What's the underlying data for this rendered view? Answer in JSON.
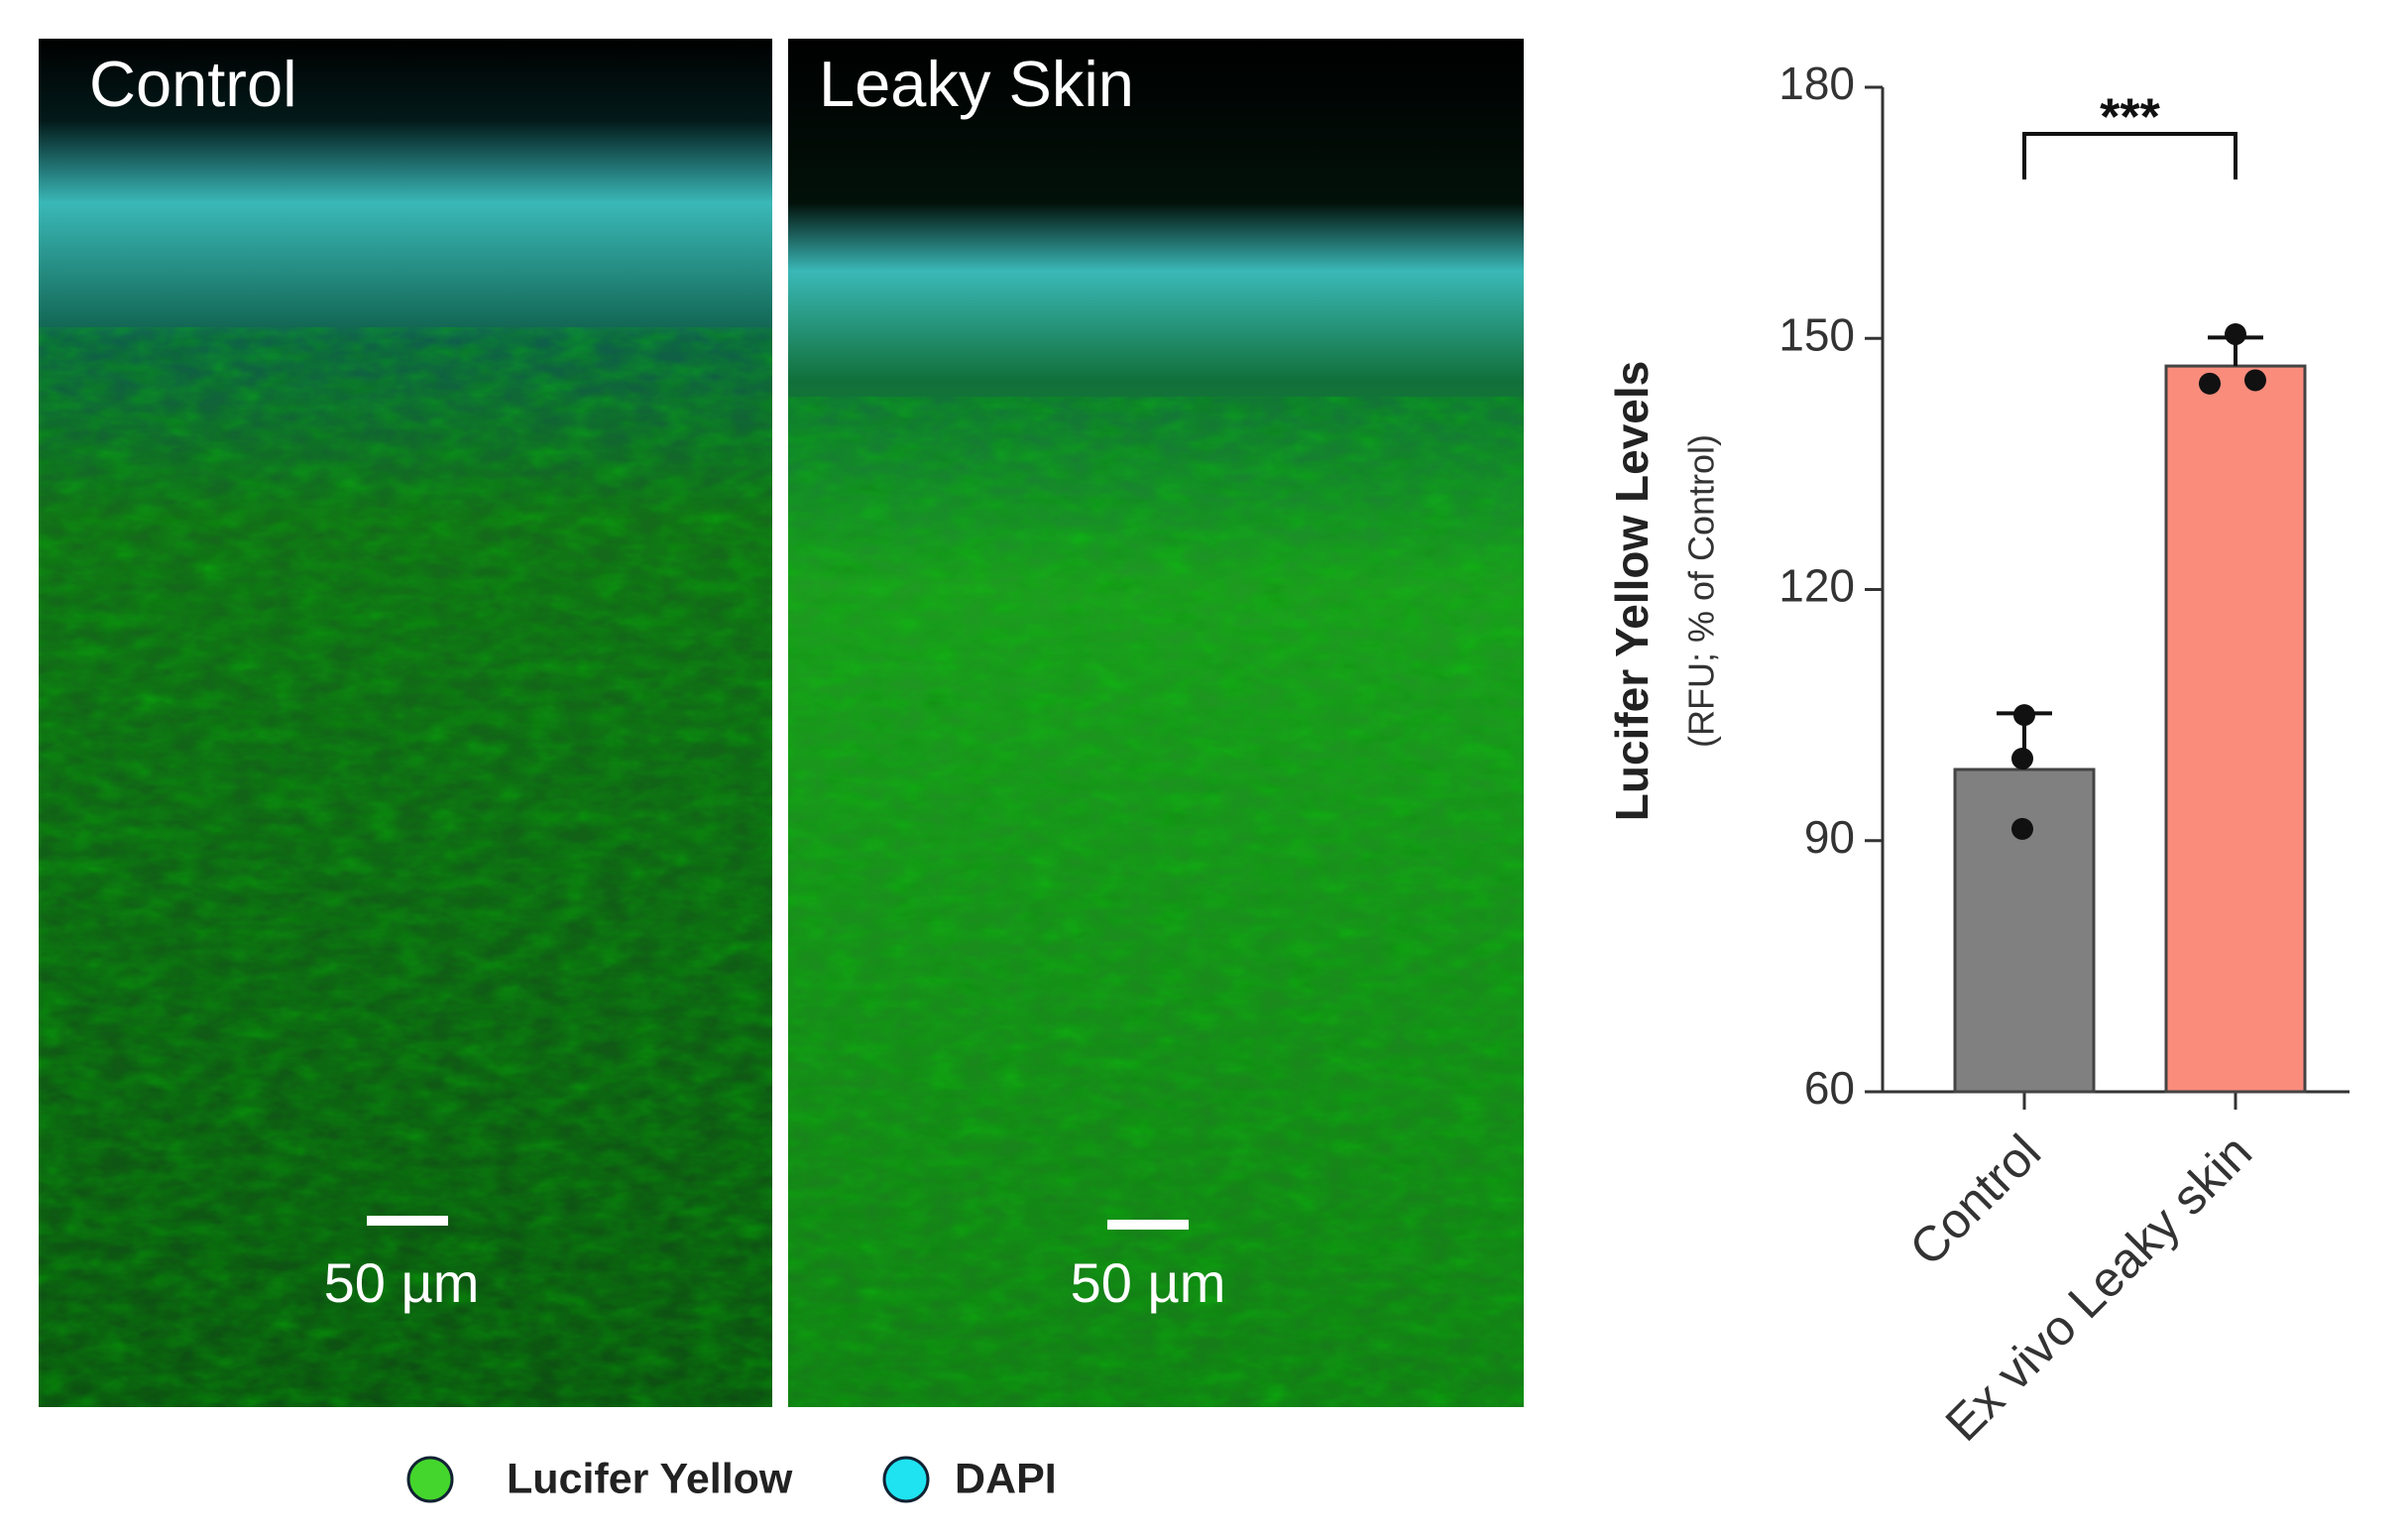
{
  "panels": [
    {
      "label": "Control",
      "scale_bar": "50 µm"
    },
    {
      "label": "Leaky Skin",
      "scale_bar": "50 µm"
    }
  ],
  "legend": [
    {
      "label": "Lucifer Yellow",
      "color": "#44d62c"
    },
    {
      "label": "DAPI",
      "color": "#1fe3f0"
    }
  ],
  "chart_data": {
    "type": "bar",
    "ylabel": "Lucifer Yellow Levels",
    "ylabel_sub": "(RFU; % of Control)",
    "categories": [
      "Control",
      "Ex vivo Leaky skin"
    ],
    "values": [
      98.5,
      146.7
    ],
    "errors": [
      6.7,
      3.4
    ],
    "points": [
      [
        105,
        99.8,
        91.4
      ],
      [
        150.5,
        144.6,
        145
      ]
    ],
    "colors": [
      "#808080",
      "#fa8c7c"
    ],
    "ylim": [
      60,
      180
    ],
    "yticks": [
      60,
      90,
      120,
      150,
      180
    ],
    "significance": "***"
  }
}
